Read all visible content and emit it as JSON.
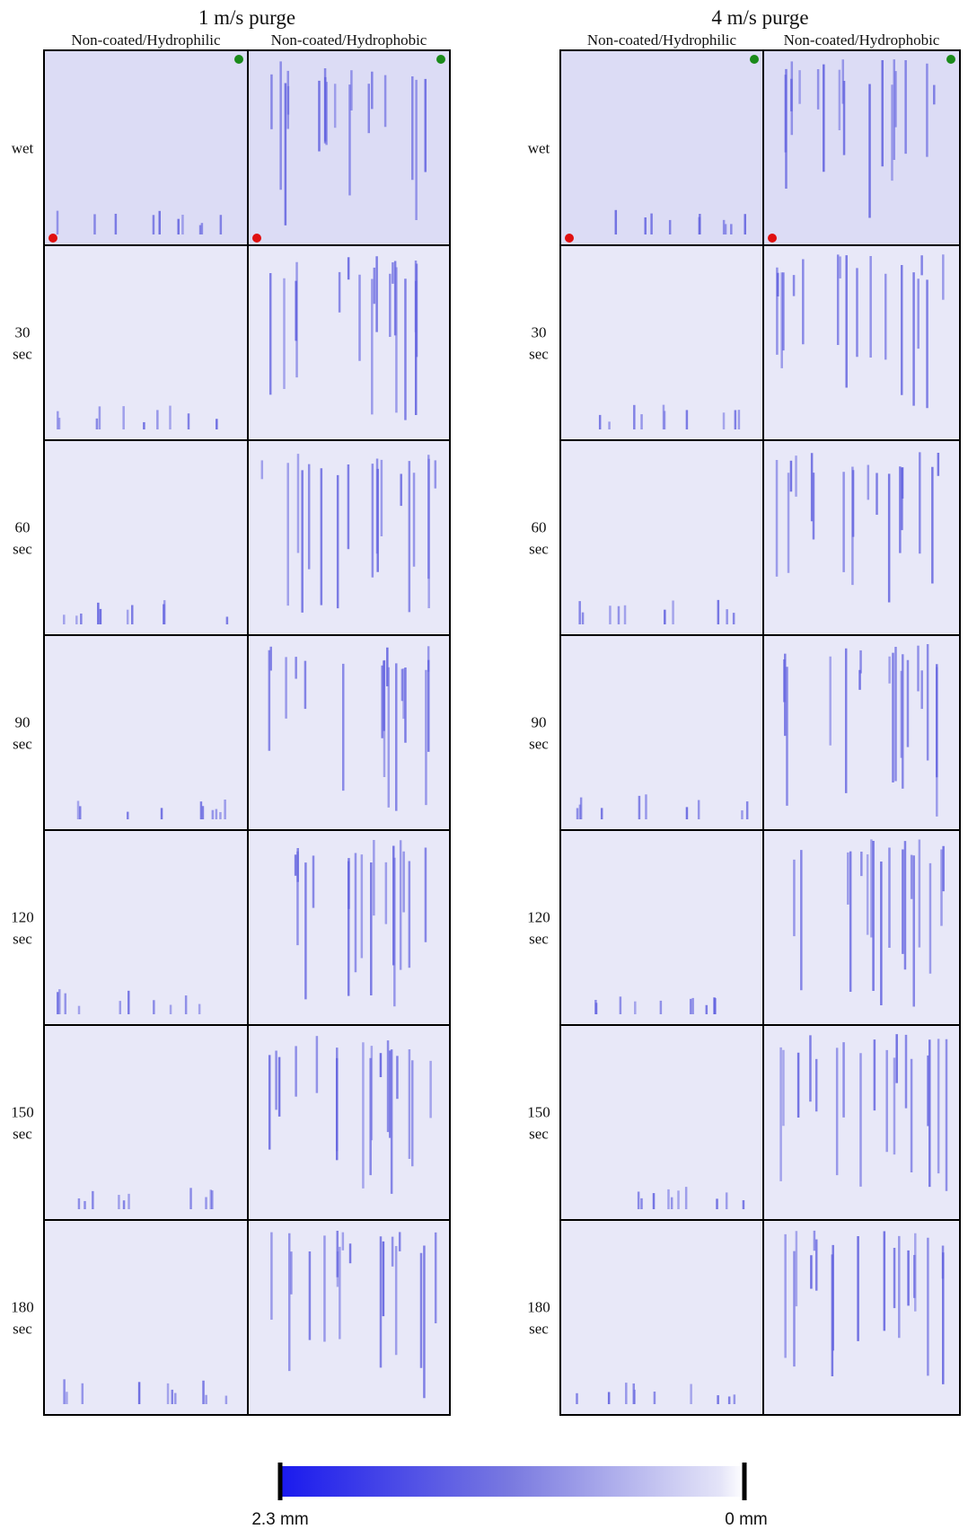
{
  "groups": [
    {
      "title": "1 m/s purge",
      "columns": [
        "Non-coated/Hydrophilic",
        "Non-coated/Hydrophobic"
      ]
    },
    {
      "title": "4 m/s purge",
      "columns": [
        "Non-coated/Hydrophilic",
        "Non-coated/Hydrophobic"
      ]
    }
  ],
  "rows": [
    [
      "wet"
    ],
    [
      "30",
      "sec"
    ],
    [
      "60",
      "sec"
    ],
    [
      "90",
      "sec"
    ],
    [
      "120",
      "sec"
    ],
    [
      "150",
      "sec"
    ],
    [
      "180",
      "sec"
    ]
  ],
  "colorbar": {
    "min_label": "2.3 mm",
    "max_label": "0 mm"
  }
}
